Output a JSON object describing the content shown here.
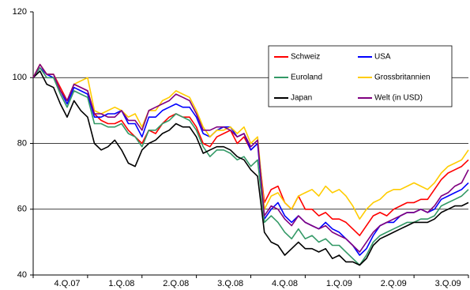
{
  "chart_data": {
    "type": "line",
    "categories": [
      null,
      null,
      null,
      null,
      null,
      "4.Q.07",
      null,
      null,
      null,
      null,
      null,
      null,
      null,
      "1.Q.08",
      null,
      null,
      null,
      null,
      null,
      null,
      null,
      "2.Q.08",
      null,
      null,
      null,
      null,
      null,
      null,
      null,
      "3.Q.08",
      null,
      null,
      null,
      null,
      null,
      null,
      null,
      "4.Q.08",
      null,
      null,
      null,
      null,
      null,
      null,
      null,
      "1.Q.09",
      null,
      null,
      null,
      null,
      null,
      null,
      null,
      "2.Q.09",
      null,
      null,
      null,
      null,
      null,
      null,
      null,
      "3.Q.09",
      null,
      null,
      null
    ],
    "series": [
      {
        "name": "Schweiz",
        "color": "#ff0000",
        "values": [
          100,
          104,
          101,
          101,
          97,
          93,
          98,
          97,
          96,
          89,
          87,
          86,
          86,
          87,
          84,
          82,
          80,
          84,
          83,
          86,
          88,
          89,
          88,
          88,
          85,
          80,
          79,
          82,
          83,
          84,
          80,
          82,
          78,
          80,
          62,
          66,
          67,
          62,
          60,
          64,
          60,
          60,
          58,
          59,
          57,
          57,
          56,
          54,
          52,
          55,
          58,
          59,
          58,
          60,
          61,
          62,
          62,
          63,
          63,
          66,
          69,
          71,
          72,
          73,
          75
        ]
      },
      {
        "name": "USA",
        "color": "#0000ff",
        "values": [
          100,
          103,
          101,
          100,
          96,
          92,
          97,
          96,
          95,
          88,
          88,
          89,
          89,
          90,
          86,
          86,
          82,
          88,
          88,
          90,
          91,
          92,
          91,
          91,
          88,
          83,
          82,
          84,
          85,
          85,
          82,
          83,
          78,
          80,
          57,
          60,
          62,
          58,
          56,
          58,
          56,
          55,
          54,
          56,
          54,
          53,
          51,
          49,
          46,
          48,
          52,
          55,
          56,
          56,
          58,
          59,
          59,
          60,
          59,
          60,
          63,
          64,
          65,
          66,
          68
        ]
      },
      {
        "name": "Euroland",
        "color": "#339966",
        "values": [
          100,
          103,
          100,
          100,
          95,
          91,
          96,
          95,
          94,
          86,
          86,
          85,
          85,
          86,
          83,
          82,
          79,
          84,
          84,
          86,
          87,
          89,
          88,
          87,
          84,
          79,
          76,
          78,
          78,
          77,
          75,
          76,
          73,
          75,
          56,
          58,
          56,
          53,
          51,
          54,
          51,
          52,
          50,
          51,
          49,
          49,
          47,
          45,
          43,
          46,
          50,
          52,
          53,
          54,
          55,
          56,
          56,
          57,
          57,
          58,
          61,
          62,
          63,
          64,
          66
        ]
      },
      {
        "name": "Grossbritannien",
        "color": "#ffcc00",
        "values": [
          100,
          104,
          101,
          101,
          96,
          93,
          98,
          99,
          100,
          90,
          89,
          90,
          91,
          90,
          88,
          89,
          85,
          90,
          90,
          93,
          94,
          96,
          95,
          94,
          90,
          85,
          82,
          84,
          84,
          85,
          83,
          85,
          80,
          82,
          60,
          64,
          65,
          62,
          60,
          64,
          65,
          66,
          64,
          67,
          65,
          66,
          64,
          61,
          57,
          60,
          62,
          63,
          65,
          66,
          66,
          67,
          68,
          67,
          66,
          68,
          71,
          73,
          74,
          75,
          78
        ]
      },
      {
        "name": "Japan",
        "color": "#000000",
        "values": [
          100,
          102,
          98,
          97,
          92,
          88,
          93,
          90,
          88,
          80,
          78,
          79,
          81,
          78,
          74,
          73,
          78,
          80,
          81,
          83,
          84,
          86,
          85,
          85,
          82,
          77,
          78,
          79,
          79,
          78,
          76,
          75,
          72,
          70,
          53,
          50,
          49,
          46,
          48,
          50,
          48,
          48,
          47,
          48,
          45,
          46,
          44,
          44,
          43,
          45,
          49,
          51,
          52,
          53,
          54,
          55,
          56,
          56,
          56,
          57,
          59,
          60,
          61,
          61,
          62
        ]
      },
      {
        "name": "Welt (in USD)",
        "color": "#800080",
        "values": [
          100,
          104,
          101,
          101,
          96,
          93,
          98,
          97,
          96,
          89,
          89,
          88,
          88,
          90,
          87,
          87,
          84,
          90,
          91,
          92,
          93,
          95,
          94,
          93,
          89,
          84,
          84,
          85,
          85,
          84,
          82,
          83,
          79,
          81,
          58,
          61,
          60,
          57,
          55,
          58,
          56,
          55,
          54,
          55,
          53,
          52,
          51,
          49,
          47,
          50,
          53,
          55,
          56,
          57,
          58,
          59,
          59,
          60,
          59,
          61,
          64,
          65,
          67,
          68,
          72
        ]
      }
    ],
    "ylim": [
      40,
      120
    ],
    "yticks": [
      40,
      60,
      80,
      100,
      120
    ],
    "grid": true
  }
}
